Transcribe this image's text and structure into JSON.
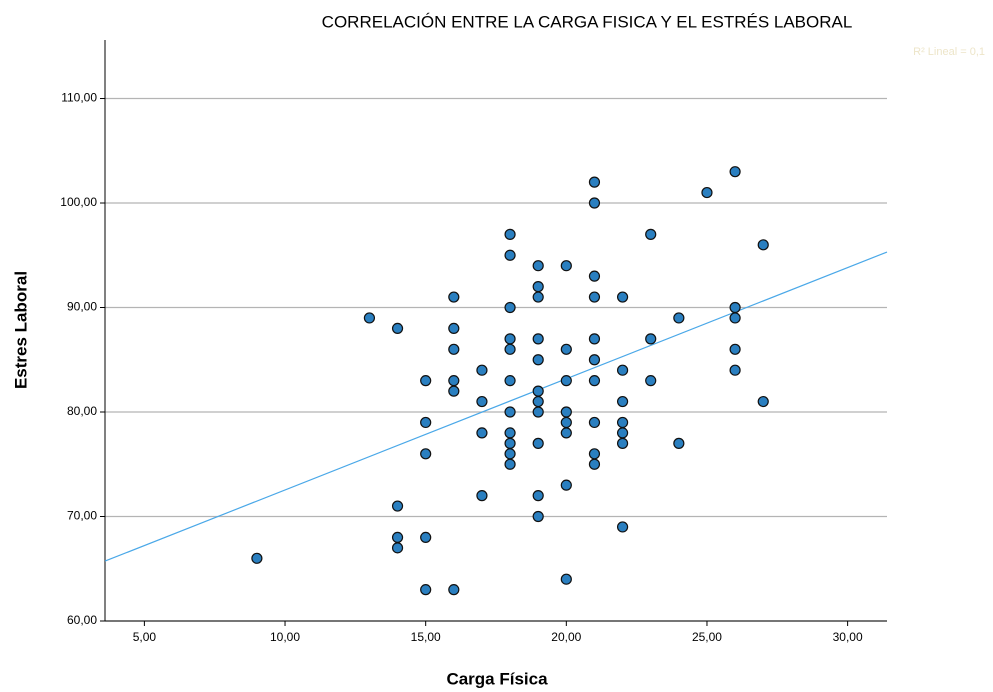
{
  "chart_data": {
    "type": "scatter",
    "title": "CORRELACIÓN ENTRE LA CARGA FISICA Y EL ESTRÉS LABORAL",
    "x_label": "Carga Física",
    "y_label": "Estres Laboral",
    "annotation": "R² Lineal = 0,1",
    "xlim": [
      3.6,
      31.4
    ],
    "ylim": [
      60,
      115.6
    ],
    "xticks": [
      {
        "value": 5,
        "label": "5,00"
      },
      {
        "value": 10,
        "label": "10,00"
      },
      {
        "value": 15,
        "label": "15,00"
      },
      {
        "value": 20,
        "label": "20,00"
      },
      {
        "value": 25,
        "label": "25,00"
      },
      {
        "value": 30,
        "label": "30,00"
      }
    ],
    "yticks": [
      {
        "value": 60,
        "label": "60,00"
      },
      {
        "value": 70,
        "label": "70,00"
      },
      {
        "value": 80,
        "label": "80,00"
      },
      {
        "value": 90,
        "label": "90,00"
      },
      {
        "value": 100,
        "label": "100,00"
      },
      {
        "value": 110,
        "label": "110,00"
      }
    ],
    "grid": true,
    "color": "#2a7fc0",
    "fit_color": "#4aa8e8",
    "fit": {
      "intercept": 61.9,
      "slope": 1.064
    },
    "x": [
      9,
      13,
      14,
      14,
      14,
      14,
      15,
      15,
      15,
      15,
      15,
      16,
      16,
      16,
      16,
      16,
      16,
      17,
      17,
      17,
      17,
      18,
      18,
      18,
      18,
      18,
      18,
      18,
      18,
      18,
      18,
      18,
      19,
      19,
      19,
      19,
      19,
      19,
      19,
      19,
      19,
      19,
      19,
      20,
      20,
      20,
      20,
      20,
      20,
      20,
      20,
      21,
      21,
      21,
      21,
      21,
      21,
      21,
      21,
      21,
      21,
      22,
      22,
      22,
      22,
      22,
      22,
      22,
      23,
      23,
      23,
      24,
      24,
      25,
      26,
      26,
      26,
      26,
      26,
      27,
      27
    ],
    "y": [
      66,
      89,
      88,
      71,
      68,
      67,
      83,
      79,
      76,
      68,
      63,
      91,
      88,
      86,
      83,
      82,
      63,
      84,
      81,
      78,
      72,
      97,
      95,
      90,
      87,
      86,
      83,
      80,
      78,
      77,
      76,
      75,
      94,
      92,
      91,
      87,
      85,
      82,
      81,
      80,
      77,
      72,
      70,
      94,
      86,
      83,
      80,
      79,
      78,
      73,
      64,
      102,
      100,
      93,
      91,
      87,
      85,
      83,
      79,
      76,
      75,
      91,
      84,
      81,
      79,
      78,
      77,
      69,
      97,
      87,
      83,
      89,
      77,
      101,
      103,
      90,
      89,
      86,
      84,
      96,
      81
    ]
  }
}
